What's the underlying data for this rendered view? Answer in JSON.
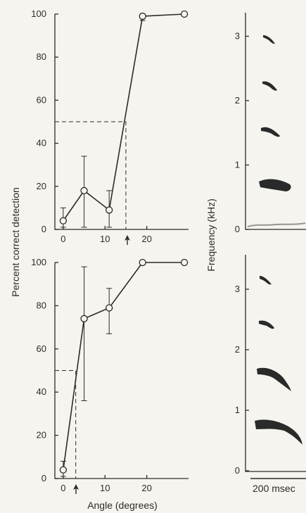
{
  "chart_data": [
    {
      "type": "line",
      "panel": "top",
      "ylabel": "Percent correct detection",
      "xlabel": "",
      "xlim": [
        -2,
        30
      ],
      "ylim": [
        0,
        100
      ],
      "xticks": [
        "0",
        "10",
        "20"
      ],
      "yticks": [
        "0",
        "20",
        "40",
        "60",
        "80",
        "100"
      ],
      "threshold_level": 50,
      "threshold_angle": 15,
      "series": [
        {
          "x": [
            0,
            5,
            11,
            19,
            29
          ],
          "y": [
            4,
            18,
            9,
            99,
            100
          ],
          "err_low": [
            1,
            1,
            1,
            97,
            100
          ],
          "err_high": [
            10,
            34,
            18,
            100,
            100
          ]
        }
      ]
    },
    {
      "type": "line",
      "panel": "bottom",
      "ylabel": "Percent correct detection",
      "xlabel": "Angle (degrees)",
      "xlim": [
        -2,
        30
      ],
      "ylim": [
        0,
        100
      ],
      "xticks": [
        "0",
        "10",
        "20"
      ],
      "yticks": [
        "0",
        "20",
        "40",
        "60",
        "80",
        "100"
      ],
      "threshold_level": 50,
      "threshold_angle": 3,
      "series": [
        {
          "x": [
            0,
            5,
            11,
            19,
            29
          ],
          "y": [
            4,
            74,
            79,
            100,
            100
          ],
          "err_low": [
            1,
            36,
            67,
            100,
            100
          ],
          "err_high": [
            8,
            98,
            88,
            100,
            100
          ]
        }
      ]
    }
  ],
  "spectrograms": {
    "ylabel": "Frequency (kHz)",
    "top_yticks": [
      "0",
      "1",
      "2",
      "3"
    ],
    "bottom_yticks": [
      "0",
      "1",
      "2",
      "3"
    ],
    "scale_label": "200 msec"
  }
}
